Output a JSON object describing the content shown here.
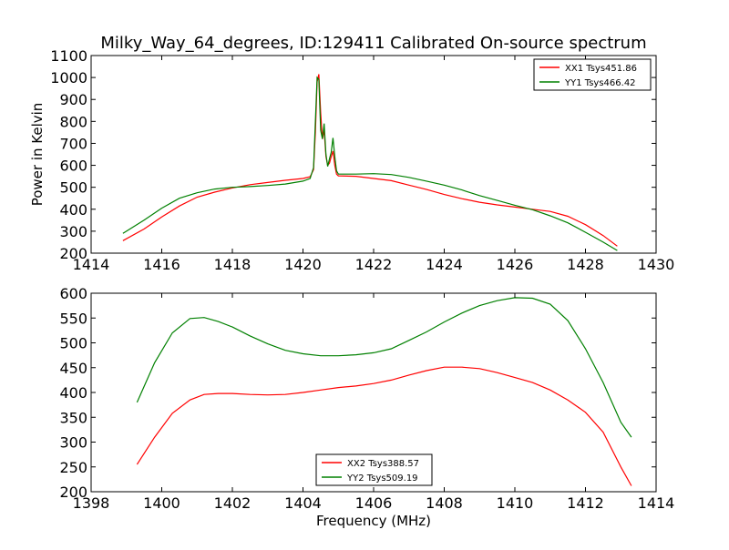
{
  "figure": {
    "title": "Milky_Way_64_degrees, ID:129411 Calibrated On-source spectrum"
  },
  "chart_data": [
    {
      "type": "line",
      "title": "Milky_Way_64_degrees, ID:129411 Calibrated On-source spectrum",
      "xlabel": "",
      "ylabel": "Power in Kelvin",
      "xlim": [
        1414,
        1430
      ],
      "ylim": [
        200,
        1100
      ],
      "xticks": [
        1414,
        1416,
        1418,
        1420,
        1422,
        1424,
        1426,
        1428,
        1430
      ],
      "yticks": [
        200,
        300,
        400,
        500,
        600,
        700,
        800,
        900,
        1000,
        1100
      ],
      "legend_position": "top-right",
      "grid": false,
      "series": [
        {
          "name": "XX1 Tsys451.86",
          "color": "#ff0000",
          "points": [
            [
              1414.9,
              257
            ],
            [
              1415.5,
              310
            ],
            [
              1416,
              365
            ],
            [
              1416.5,
              415
            ],
            [
              1417,
              455
            ],
            [
              1417.5,
              478
            ],
            [
              1418,
              497
            ],
            [
              1418.5,
              512
            ],
            [
              1419,
              522
            ],
            [
              1419.5,
              532
            ],
            [
              1420,
              540
            ],
            [
              1420.2,
              548
            ],
            [
              1420.3,
              580
            ],
            [
              1420.35,
              750
            ],
            [
              1420.4,
              980
            ],
            [
              1420.45,
              1015
            ],
            [
              1420.5,
              840
            ],
            [
              1420.55,
              720
            ],
            [
              1420.6,
              760
            ],
            [
              1420.65,
              640
            ],
            [
              1420.7,
              600
            ],
            [
              1420.75,
              610
            ],
            [
              1420.8,
              640
            ],
            [
              1420.85,
              665
            ],
            [
              1420.9,
              600
            ],
            [
              1420.95,
              560
            ],
            [
              1421,
              552
            ],
            [
              1421.5,
              550
            ],
            [
              1422,
              540
            ],
            [
              1422.5,
              530
            ],
            [
              1423,
              510
            ],
            [
              1423.5,
              490
            ],
            [
              1424,
              467
            ],
            [
              1424.5,
              448
            ],
            [
              1425,
              432
            ],
            [
              1425.5,
              420
            ],
            [
              1426,
              410
            ],
            [
              1426.5,
              400
            ],
            [
              1427,
              390
            ],
            [
              1427.5,
              368
            ],
            [
              1428,
              330
            ],
            [
              1428.5,
              280
            ],
            [
              1428.9,
              232
            ]
          ]
        },
        {
          "name": "YY1 Tsys466.42",
          "color": "#008000",
          "points": [
            [
              1414.9,
              290
            ],
            [
              1415.5,
              350
            ],
            [
              1416,
              405
            ],
            [
              1416.5,
              450
            ],
            [
              1417,
              475
            ],
            [
              1417.5,
              492
            ],
            [
              1418,
              500
            ],
            [
              1418.5,
              503
            ],
            [
              1419,
              508
            ],
            [
              1419.5,
              515
            ],
            [
              1420,
              528
            ],
            [
              1420.2,
              540
            ],
            [
              1420.3,
              590
            ],
            [
              1420.35,
              800
            ],
            [
              1420.4,
              1000
            ],
            [
              1420.45,
              990
            ],
            [
              1420.5,
              760
            ],
            [
              1420.55,
              720
            ],
            [
              1420.6,
              790
            ],
            [
              1420.65,
              650
            ],
            [
              1420.7,
              595
            ],
            [
              1420.75,
              630
            ],
            [
              1420.8,
              660
            ],
            [
              1420.85,
              725
            ],
            [
              1420.9,
              640
            ],
            [
              1420.95,
              575
            ],
            [
              1421,
              560
            ],
            [
              1421.5,
              560
            ],
            [
              1422,
              562
            ],
            [
              1422.5,
              558
            ],
            [
              1423,
              545
            ],
            [
              1423.5,
              528
            ],
            [
              1424,
              510
            ],
            [
              1424.5,
              488
            ],
            [
              1425,
              462
            ],
            [
              1425.5,
              440
            ],
            [
              1426,
              418
            ],
            [
              1426.5,
              398
            ],
            [
              1427,
              370
            ],
            [
              1427.5,
              338
            ],
            [
              1428,
              295
            ],
            [
              1428.5,
              250
            ],
            [
              1428.9,
              212
            ]
          ]
        }
      ]
    },
    {
      "type": "line",
      "title": "",
      "xlabel": "Frequency (MHz)",
      "ylabel": "",
      "xlim": [
        1398,
        1414
      ],
      "ylim": [
        200,
        600
      ],
      "xticks": [
        1398,
        1400,
        1402,
        1404,
        1406,
        1408,
        1410,
        1412,
        1414
      ],
      "yticks": [
        200,
        250,
        300,
        350,
        400,
        450,
        500,
        550,
        600
      ],
      "legend_position": "bottom-center",
      "grid": false,
      "series": [
        {
          "name": "XX2 Tsys388.57",
          "color": "#ff0000",
          "points": [
            [
              1399.3,
              255
            ],
            [
              1399.8,
              310
            ],
            [
              1400.3,
              358
            ],
            [
              1400.8,
              385
            ],
            [
              1401.2,
              396
            ],
            [
              1401.6,
              398
            ],
            [
              1402,
              398
            ],
            [
              1402.5,
              396
            ],
            [
              1403,
              395
            ],
            [
              1403.5,
              396
            ],
            [
              1404,
              400
            ],
            [
              1404.5,
              405
            ],
            [
              1405,
              410
            ],
            [
              1405.5,
              413
            ],
            [
              1406,
              418
            ],
            [
              1406.5,
              425
            ],
            [
              1407,
              435
            ],
            [
              1407.5,
              444
            ],
            [
              1408,
              451
            ],
            [
              1408.5,
              451
            ],
            [
              1409,
              448
            ],
            [
              1409.5,
              440
            ],
            [
              1410,
              430
            ],
            [
              1410.5,
              420
            ],
            [
              1411,
              405
            ],
            [
              1411.5,
              385
            ],
            [
              1412,
              360
            ],
            [
              1412.5,
              320
            ],
            [
              1413,
              250
            ],
            [
              1413.3,
              212
            ]
          ]
        },
        {
          "name": "YY2 Tsys509.19",
          "color": "#008000",
          "points": [
            [
              1399.3,
              380
            ],
            [
              1399.8,
              460
            ],
            [
              1400.3,
              520
            ],
            [
              1400.8,
              549
            ],
            [
              1401.2,
              551
            ],
            [
              1401.6,
              543
            ],
            [
              1402,
              532
            ],
            [
              1402.5,
              514
            ],
            [
              1403,
              498
            ],
            [
              1403.5,
              485
            ],
            [
              1404,
              478
            ],
            [
              1404.5,
              474
            ],
            [
              1405,
              474
            ],
            [
              1405.5,
              476
            ],
            [
              1406,
              480
            ],
            [
              1406.5,
              488
            ],
            [
              1407,
              505
            ],
            [
              1407.5,
              522
            ],
            [
              1408,
              542
            ],
            [
              1408.5,
              560
            ],
            [
              1409,
              575
            ],
            [
              1409.5,
              585
            ],
            [
              1410,
              591
            ],
            [
              1410.5,
              590
            ],
            [
              1411,
              578
            ],
            [
              1411.5,
              545
            ],
            [
              1412,
              488
            ],
            [
              1412.5,
              420
            ],
            [
              1413,
              340
            ],
            [
              1413.3,
              310
            ]
          ]
        }
      ]
    }
  ]
}
